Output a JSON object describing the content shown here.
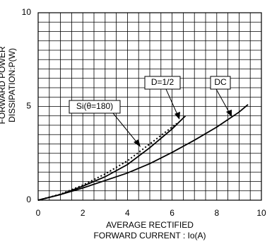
{
  "chart_data": {
    "type": "line",
    "y_label": [
      "FORWARD POWER",
      "DISSIPATION:P(W)"
    ],
    "x_label": [
      "AVERAGE RECTIFIED",
      "FORWARD CURRENT : Io(A)"
    ],
    "xlim": [
      0,
      10
    ],
    "ylim": [
      0,
      10
    ],
    "xticks": [
      0,
      2,
      4,
      6,
      8,
      10
    ],
    "yticks": [
      0,
      5,
      10
    ],
    "x_minor_ticks": [
      0.5,
      1,
      1.5,
      2.5,
      3,
      3.5,
      4.5,
      5,
      5.5,
      6.5,
      7,
      7.5,
      8.5,
      9,
      9.5
    ],
    "y_minor_ticks": [
      0.5,
      1,
      1.5,
      2,
      2.5,
      3,
      3.5,
      4,
      4.5,
      5.5,
      6,
      6.5,
      7,
      7.5,
      8,
      8.5,
      9,
      9.5
    ],
    "grid": true,
    "annotations": [
      "Si(θ=180)",
      "D=1/2",
      "DC"
    ],
    "series": [
      {
        "name": "DC",
        "color": "#000",
        "dash": "solid",
        "x": [
          0,
          1,
          2,
          3,
          4,
          5,
          6,
          7,
          8,
          9,
          9.4
        ],
        "values": [
          0,
          0.3,
          0.65,
          1.05,
          1.45,
          1.95,
          2.55,
          3.2,
          3.9,
          4.7,
          5.1
        ]
      },
      {
        "name": "D=1/2",
        "color": "#000",
        "dash": "solid",
        "x": [
          0,
          1,
          2,
          3,
          4,
          5,
          6,
          6.6
        ],
        "values": [
          0,
          0.3,
          0.75,
          1.25,
          1.9,
          2.8,
          3.8,
          4.5
        ]
      },
      {
        "name": "Si(θ=180)",
        "color": "#000",
        "dash": "dotted",
        "x": [
          0,
          1,
          2,
          3,
          4,
          5,
          6,
          6.2
        ],
        "values": [
          0,
          0.32,
          0.8,
          1.4,
          2.1,
          3.0,
          3.9,
          4.1
        ]
      }
    ]
  }
}
